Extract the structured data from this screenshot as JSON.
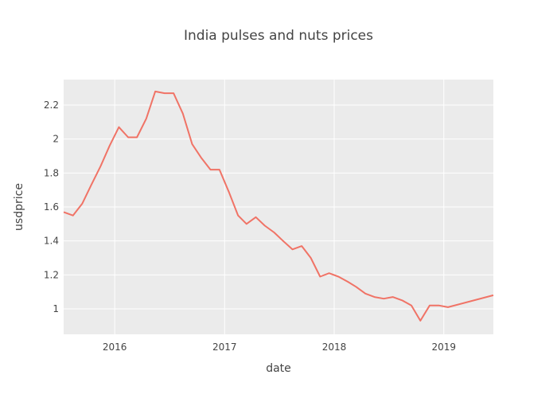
{
  "chart_data": {
    "type": "line",
    "title": "India pulses and nuts prices",
    "xlabel": "date",
    "ylabel": "usdprice",
    "x_ticks": [
      "2016",
      "2017",
      "2018",
      "2019"
    ],
    "y_ticks": [
      "1",
      "1.2",
      "1.4",
      "1.6",
      "1.8",
      "2",
      "2.2"
    ],
    "y_tick_values": [
      1,
      1.2,
      1.4,
      1.6,
      1.8,
      2,
      2.2
    ],
    "x_tick_dates": [
      "2016-01-01",
      "2017-01-01",
      "2018-01-01",
      "2019-01-01"
    ],
    "xlim": [
      "2015-07-15",
      "2019-06-15"
    ],
    "ylim": [
      0.85,
      2.35
    ],
    "grid": true,
    "colors": {
      "line": "#F07366",
      "plot_bg": "#EBEBEB",
      "grid": "#FFFFFF",
      "text": "#444444"
    },
    "series": [
      {
        "name": "",
        "x": [
          "2015-07-15",
          "2015-08-15",
          "2015-09-15",
          "2015-10-15",
          "2015-11-15",
          "2015-12-15",
          "2016-01-15",
          "2016-02-15",
          "2016-03-15",
          "2016-04-15",
          "2016-05-15",
          "2016-06-15",
          "2016-07-15",
          "2016-08-15",
          "2016-09-15",
          "2016-10-15",
          "2016-11-15",
          "2016-12-15",
          "2017-01-15",
          "2017-02-15",
          "2017-03-15",
          "2017-04-15",
          "2017-05-15",
          "2017-06-15",
          "2017-07-15",
          "2017-08-15",
          "2017-09-15",
          "2017-10-15",
          "2017-11-15",
          "2017-12-15",
          "2018-01-15",
          "2018-02-15",
          "2018-03-15",
          "2018-04-15",
          "2018-05-15",
          "2018-06-15",
          "2018-07-15",
          "2018-08-15",
          "2018-09-15",
          "2018-10-15",
          "2018-11-15",
          "2018-12-15",
          "2019-01-15",
          "2019-06-15"
        ],
        "y": [
          1.57,
          1.55,
          1.62,
          1.73,
          1.84,
          1.96,
          2.07,
          2.01,
          2.01,
          2.12,
          2.28,
          2.27,
          2.27,
          2.15,
          1.97,
          1.89,
          1.82,
          1.82,
          1.69,
          1.55,
          1.5,
          1.54,
          1.49,
          1.45,
          1.4,
          1.35,
          1.37,
          1.3,
          1.19,
          1.21,
          1.19,
          1.16,
          1.13,
          1.09,
          1.07,
          1.06,
          1.07,
          1.05,
          1.02,
          0.93,
          1.02,
          1.02,
          1.01,
          1.08
        ]
      }
    ]
  }
}
